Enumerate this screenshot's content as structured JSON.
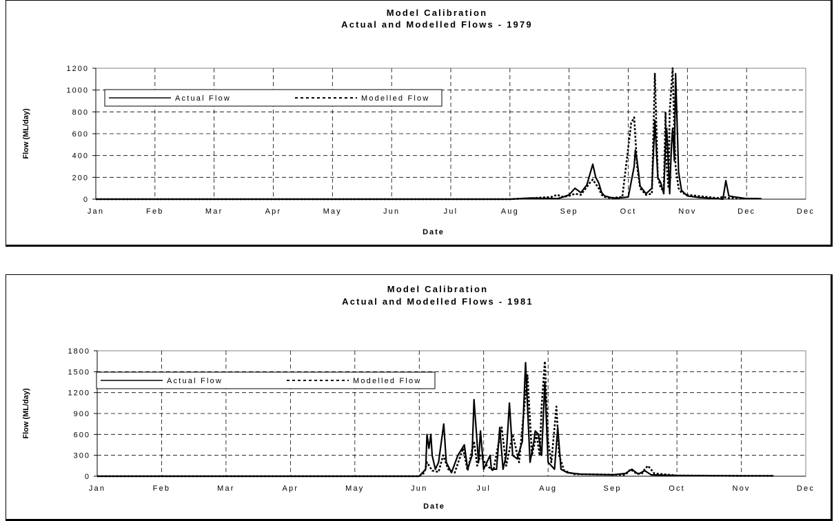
{
  "chart_data": [
    {
      "type": "line",
      "title": "Model Calibration",
      "subtitle": "Actual and Modelled Flows - 1979",
      "xlabel": "Date",
      "ylabel": "Flow (ML/day)",
      "ylim": [
        0,
        1200
      ],
      "yticks": [
        "0",
        "200",
        "400",
        "600",
        "800",
        "1000",
        "1200"
      ],
      "months": [
        "Jan",
        "Feb",
        "Mar",
        "Apr",
        "May",
        "Jun",
        "Jul",
        "Aug",
        "Sep",
        "Oct",
        "Nov",
        "Dec",
        "Dec"
      ],
      "grid": true,
      "legend_position": "top-left",
      "series": [
        {
          "name": "Actual Flow",
          "style": "solid",
          "x": [
            0,
            7.0,
            7.35,
            7.8,
            7.9,
            8.0,
            8.1,
            8.2,
            8.3,
            8.4,
            8.45,
            8.5,
            8.55,
            8.6,
            8.7,
            8.8,
            9.0,
            9.1,
            9.12,
            9.15,
            9.2,
            9.3,
            9.4,
            9.45,
            9.5,
            9.55,
            9.6,
            9.63,
            9.65,
            9.68,
            9.7,
            9.73,
            9.75,
            9.78,
            9.8,
            9.82,
            9.85,
            9.9,
            10.0,
            10.2,
            10.5,
            10.6,
            10.65,
            10.7,
            10.8,
            11.0,
            11.25
          ],
          "y": [
            0,
            0,
            10,
            5,
            20,
            40,
            100,
            60,
            130,
            320,
            200,
            150,
            60,
            30,
            15,
            8,
            20,
            300,
            450,
            350,
            120,
            50,
            100,
            720,
            200,
            150,
            50,
            500,
            650,
            300,
            50,
            500,
            650,
            350,
            1150,
            800,
            250,
            80,
            30,
            15,
            5,
            0,
            170,
            30,
            20,
            5,
            5
          ]
        },
        {
          "name": "Modelled Flow",
          "style": "dashed",
          "x": [
            0,
            7.0,
            7.4,
            7.7,
            7.8,
            7.9,
            8.0,
            8.1,
            8.2,
            8.35,
            8.4,
            8.5,
            8.55,
            8.6,
            8.7,
            8.9,
            9.05,
            9.1,
            9.15,
            9.2,
            9.3,
            9.4,
            9.45,
            9.5,
            9.55,
            9.6,
            9.63,
            9.65,
            9.68,
            9.7,
            9.75,
            9.78,
            9.8,
            9.85,
            9.9,
            10.0,
            10.5,
            10.6,
            10.7,
            11.0,
            11.2
          ],
          "y": [
            0,
            0,
            10,
            20,
            40,
            20,
            30,
            50,
            40,
            150,
            180,
            100,
            40,
            20,
            10,
            20,
            700,
            750,
            300,
            100,
            40,
            50,
            1150,
            200,
            100,
            80,
            800,
            300,
            100,
            800,
            1200,
            600,
            300,
            100,
            60,
            40,
            10,
            20,
            10,
            5,
            5
          ]
        }
      ]
    },
    {
      "type": "line",
      "title": "Model Calibration",
      "subtitle": "Actual and Modelled Flows - 1981",
      "xlabel": "Date",
      "ylabel": "Flow (ML/day)",
      "ylim": [
        0,
        1800
      ],
      "yticks": [
        "0",
        "300",
        "600",
        "900",
        "1200",
        "1500",
        "1800"
      ],
      "months": [
        "Jan",
        "Feb",
        "Mar",
        "Apr",
        "May",
        "Jun",
        "Jul",
        "Aug",
        "Sep",
        "Oct",
        "Nov",
        "Dec"
      ],
      "grid": true,
      "legend_position": "top-left",
      "series": [
        {
          "name": "Actual Flow",
          "style": "solid",
          "x": [
            0,
            5.0,
            5.05,
            5.1,
            5.12,
            5.15,
            5.18,
            5.2,
            5.25,
            5.3,
            5.38,
            5.42,
            5.5,
            5.6,
            5.7,
            5.75,
            5.82,
            5.85,
            5.92,
            5.95,
            6.0,
            6.05,
            6.1,
            6.12,
            6.2,
            6.25,
            6.3,
            6.35,
            6.4,
            6.45,
            6.52,
            6.6,
            6.65,
            6.72,
            6.78,
            6.8,
            6.85,
            6.9,
            6.95,
            7.0,
            7.1,
            7.15,
            7.2,
            7.3,
            7.5,
            8.0,
            8.2,
            8.3,
            8.4,
            8.5,
            8.6,
            9.0,
            10.0,
            10.5
          ],
          "y": [
            0,
            0,
            50,
            100,
            600,
            400,
            600,
            300,
            100,
            200,
            750,
            200,
            50,
            300,
            450,
            100,
            300,
            1100,
            200,
            650,
            100,
            200,
            300,
            100,
            100,
            700,
            100,
            300,
            1050,
            300,
            250,
            500,
            1630,
            200,
            500,
            650,
            600,
            300,
            1350,
            200,
            100,
            700,
            100,
            50,
            30,
            20,
            40,
            100,
            30,
            80,
            20,
            10,
            5,
            5
          ]
        },
        {
          "name": "Modelled Flow",
          "style": "dashed",
          "x": [
            0,
            5.0,
            5.08,
            5.12,
            5.2,
            5.3,
            5.37,
            5.45,
            5.55,
            5.68,
            5.75,
            5.85,
            5.9,
            5.95,
            6.05,
            6.15,
            6.28,
            6.35,
            6.45,
            6.55,
            6.6,
            6.68,
            6.75,
            6.82,
            6.87,
            6.9,
            6.95,
            7.0,
            7.05,
            7.13,
            7.17,
            7.25,
            7.4,
            8.2,
            8.28,
            8.35,
            8.45,
            8.5,
            8.55,
            8.65,
            9.0,
            10.0,
            10.5
          ],
          "y": [
            0,
            0,
            50,
            200,
            80,
            60,
            300,
            100,
            50,
            400,
            80,
            500,
            150,
            300,
            150,
            80,
            700,
            150,
            600,
            200,
            700,
            1450,
            300,
            600,
            300,
            1000,
            1650,
            500,
            200,
            1000,
            300,
            80,
            30,
            20,
            100,
            50,
            30,
            100,
            150,
            40,
            10,
            5,
            5
          ]
        }
      ]
    }
  ]
}
